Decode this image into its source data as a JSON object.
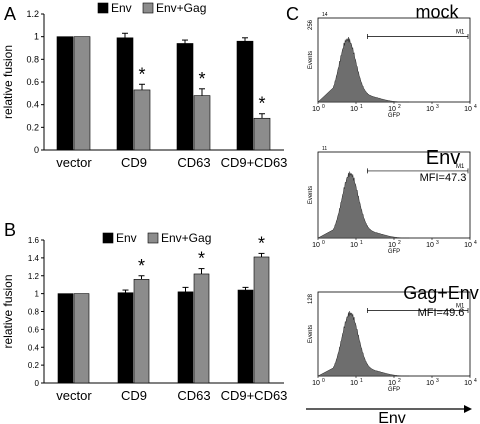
{
  "panels": {
    "A": {
      "letter": "A"
    },
    "B": {
      "letter": "B"
    },
    "C": {
      "letter": "C"
    }
  },
  "colors": {
    "env": "#000000",
    "env_gag": "#8c8c8c",
    "histogram": "#6e6e6e"
  },
  "chart_data": [
    {
      "type": "bar",
      "panel": "A",
      "ylabel": "relative fusion",
      "ylim": [
        0,
        1.2
      ],
      "yticks": [
        "0",
        "0.2",
        "0.4",
        "0.6",
        "0.8",
        "1",
        "1.2"
      ],
      "categories": [
        "vector",
        "CD9",
        "CD63",
        "CD9+CD63"
      ],
      "series": [
        {
          "name": "Env",
          "values": [
            1.0,
            0.99,
            0.94,
            0.96
          ],
          "errors": [
            0,
            0.04,
            0.03,
            0.03
          ]
        },
        {
          "name": "Env+Gag",
          "values": [
            1.0,
            0.53,
            0.48,
            0.28
          ],
          "errors": [
            0,
            0.05,
            0.06,
            0.04
          ]
        }
      ],
      "annotations": [
        {
          "category": "CD9",
          "series": "Env+Gag",
          "text": "*"
        },
        {
          "category": "CD63",
          "series": "Env+Gag",
          "text": "*"
        },
        {
          "category": "CD9+CD63",
          "series": "Env+Gag",
          "text": "*"
        }
      ],
      "grid": false,
      "legend": "top"
    },
    {
      "type": "bar",
      "panel": "B",
      "ylabel": "relative fusion",
      "ylim": [
        0,
        1.6
      ],
      "yticks": [
        "0",
        "0.2",
        "0.4",
        "0.6",
        "0.8",
        "1",
        "1.2",
        "1.4",
        "1.6"
      ],
      "categories": [
        "vector",
        "CD9",
        "CD63",
        "CD9+CD63"
      ],
      "series": [
        {
          "name": "Env",
          "values": [
            1.0,
            1.01,
            1.02,
            1.04
          ],
          "errors": [
            0,
            0.03,
            0.05,
            0.03
          ]
        },
        {
          "name": "Env+Gag",
          "values": [
            1.0,
            1.16,
            1.22,
            1.41
          ],
          "errors": [
            0,
            0.04,
            0.06,
            0.04
          ]
        }
      ],
      "annotations": [
        {
          "category": "CD9",
          "series": "Env+Gag",
          "text": "*"
        },
        {
          "category": "CD63",
          "series": "Env+Gag",
          "text": "*"
        },
        {
          "category": "CD9+CD63",
          "series": "Env+Gag",
          "text": "*"
        }
      ],
      "grid": false,
      "legend": "top"
    },
    {
      "type": "histogram",
      "panel": "C",
      "title": "mock",
      "mfi": "",
      "ymax": "256",
      "ymax_exp": "14",
      "ylabel": "Events",
      "xlabel": "GFP",
      "xscale": "log",
      "xlim": [
        1,
        10000
      ],
      "xticks": [
        "10",
        "10",
        "10",
        "10",
        "10"
      ],
      "xtick_exps": [
        "0",
        "1",
        "2",
        "3",
        "4"
      ],
      "gate": {
        "label": "M1",
        "from": 20,
        "to": 10000
      },
      "peak_center": 6
    },
    {
      "type": "histogram",
      "panel": "C",
      "title": "Env",
      "mfi": "MFI=47.3",
      "ymax": "",
      "ymax_exp": "11",
      "ylabel": "Events",
      "xlabel": "GFP",
      "xscale": "log",
      "xlim": [
        1,
        10000
      ],
      "xticks": [
        "10",
        "10",
        "10",
        "10",
        "10"
      ],
      "xtick_exps": [
        "0",
        "1",
        "2",
        "3",
        "4"
      ],
      "gate": {
        "label": "M1",
        "from": 20,
        "to": 10000
      },
      "peak_center": 7
    },
    {
      "type": "histogram",
      "panel": "C",
      "title": "Gag+Env",
      "mfi": "MFI=49.6",
      "ymax": "128",
      "ymax_exp": "",
      "ylabel": "Events",
      "xlabel": "GFP",
      "xscale": "log",
      "xlim": [
        1,
        10000
      ],
      "xticks": [
        "10",
        "10",
        "10",
        "10",
        "10"
      ],
      "xtick_exps": [
        "0",
        "1",
        "2",
        "3",
        "4"
      ],
      "gate": {
        "label": "M1",
        "from": 20,
        "to": 10000
      },
      "peak_center": 7
    }
  ],
  "bottom_axis": {
    "label": "Env"
  }
}
